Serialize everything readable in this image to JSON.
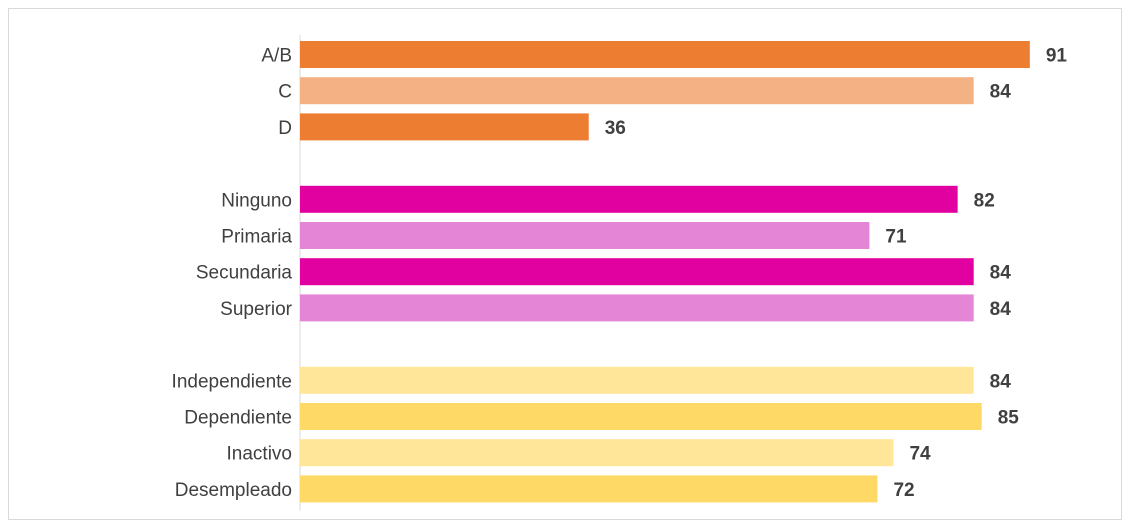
{
  "chart_data": {
    "type": "bar",
    "orientation": "horizontal",
    "title": "",
    "xlabel": "",
    "ylabel": "",
    "grid": false,
    "legend": "none",
    "xlim": [
      0,
      100
    ],
    "groups": [
      {
        "categories": [
          "A/B",
          "C",
          "D"
        ],
        "values": [
          91,
          84,
          36
        ],
        "colors": [
          "#ED7D31",
          "#F4B183",
          "#ED7D31"
        ]
      },
      {
        "categories": [
          "Ninguno",
          "Primaria",
          "Secundaria",
          "Superior"
        ],
        "values": [
          82,
          71,
          84,
          84
        ],
        "colors": [
          "#E100A0",
          "#E485D6",
          "#E100A0",
          "#E485D6"
        ]
      },
      {
        "categories": [
          "Independiente",
          "Dependiente",
          "Inactivo",
          "Desempleado"
        ],
        "values": [
          84,
          85,
          74,
          72
        ],
        "colors": [
          "#FFE699",
          "#FFD966",
          "#FFE699",
          "#FFD966"
        ]
      }
    ]
  }
}
